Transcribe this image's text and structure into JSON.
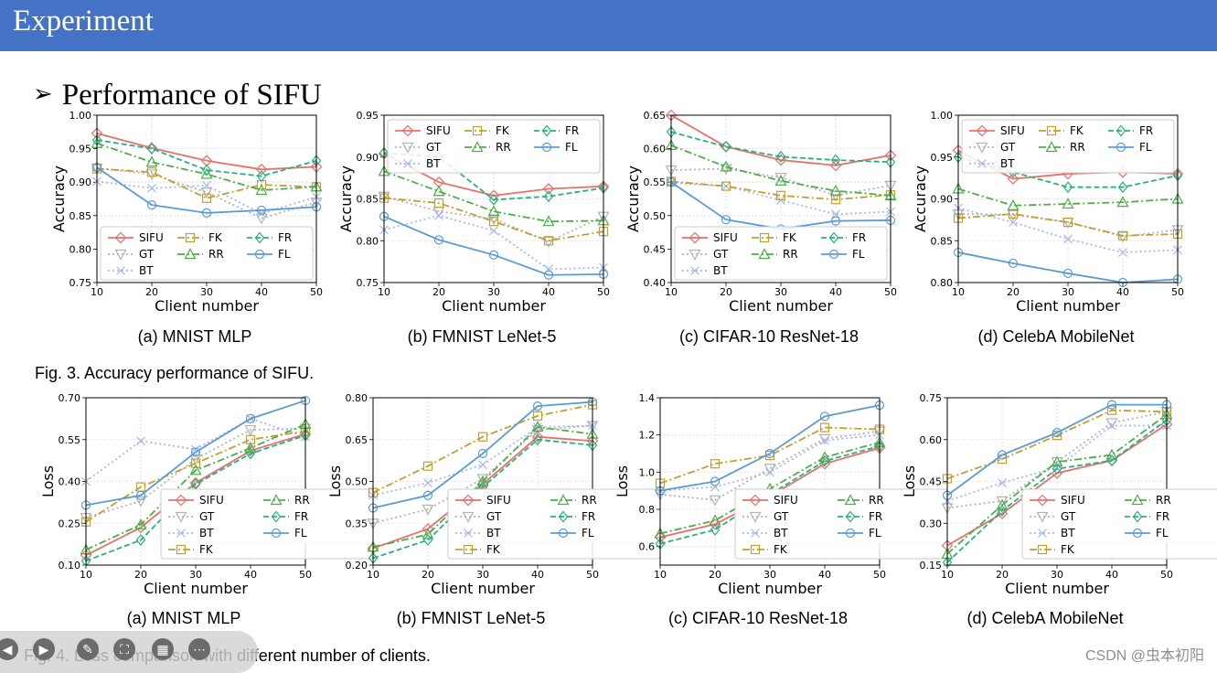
{
  "banner": {
    "title": "Experiment"
  },
  "section": {
    "bullet": "➢",
    "title": "Performance of SIFU"
  },
  "fig3_caption": "Fig. 3. Accuracy performance of SIFU.",
  "fig4_caption": "Fig. 4. Loss comparison with different number of clients.",
  "watermark": "CSDN @虫本初阳",
  "colors": {
    "banner": "#4472c4",
    "SIFU": "#e8706b",
    "GT": "#b3b3b3",
    "BT": "#a8b8e8",
    "FK": "#c0a030",
    "RR": "#4cae48",
    "FR": "#2ab07f",
    "FL": "#5b9bd5"
  },
  "series_styles": {
    "SIFU": {
      "marker": "diamond",
      "dash": ""
    },
    "GT": {
      "marker": "tri-down",
      "dash": "2,3"
    },
    "BT": {
      "marker": "x",
      "dash": "2,3"
    },
    "FK": {
      "marker": "square",
      "dash": "8,3,2,3"
    },
    "RR": {
      "marker": "tri-up",
      "dash": "8,3,2,3"
    },
    "FR": {
      "marker": "thin-diamond",
      "dash": "6,3"
    },
    "FL": {
      "marker": "circle",
      "dash": ""
    }
  },
  "chart_data": [
    {
      "type": "line",
      "id": "acc-mnist",
      "title": "(a) MNIST MLP",
      "xlabel": "Client number",
      "ylabel": "Accuracy",
      "x": [
        10,
        20,
        30,
        40,
        50
      ],
      "xticks": [
        10,
        20,
        30,
        40,
        50
      ],
      "ylim": [
        0.75,
        1.0
      ],
      "yticks": [
        "0.75",
        "0.80",
        "0.85",
        "0.90",
        "0.95",
        "1.00"
      ],
      "legend": "bottom-left",
      "series": [
        {
          "name": "SIFU",
          "values": [
            0.973,
            0.951,
            0.932,
            0.919,
            0.923
          ]
        },
        {
          "name": "GT",
          "values": [
            0.921,
            0.912,
            0.885,
            0.846,
            0.87
          ]
        },
        {
          "name": "BT",
          "values": [
            0.901,
            0.891,
            0.895,
            0.853,
            0.878
          ]
        },
        {
          "name": "FK",
          "values": [
            0.92,
            0.915,
            0.876,
            0.896,
            0.893
          ]
        },
        {
          "name": "RR",
          "values": [
            0.958,
            0.93,
            0.912,
            0.888,
            0.893
          ]
        },
        {
          "name": "FR",
          "values": [
            0.963,
            0.95,
            0.918,
            0.909,
            0.932
          ]
        },
        {
          "name": "FL",
          "values": [
            0.922,
            0.866,
            0.854,
            0.858,
            0.863
          ]
        }
      ]
    },
    {
      "type": "line",
      "id": "acc-fmnist",
      "title": "(b) FMNIST LeNet-5",
      "xlabel": "Client number",
      "ylabel": "Accuracy",
      "x": [
        10,
        20,
        30,
        40,
        50
      ],
      "xticks": [
        10,
        20,
        30,
        40,
        50
      ],
      "ylim": [
        0.75,
        0.95
      ],
      "yticks": [
        "0.75",
        "0.80",
        "0.85",
        "0.90",
        "0.95"
      ],
      "legend": "top-right",
      "series": [
        {
          "name": "SIFU",
          "values": [
            0.904,
            0.87,
            0.854,
            0.862,
            0.865
          ]
        },
        {
          "name": "GT",
          "values": [
            0.853,
            0.835,
            0.826,
            0.799,
            0.829
          ]
        },
        {
          "name": "BT",
          "values": [
            0.813,
            0.83,
            0.812,
            0.766,
            0.768
          ]
        },
        {
          "name": "FK",
          "values": [
            0.851,
            0.845,
            0.823,
            0.8,
            0.811
          ]
        },
        {
          "name": "RR",
          "values": [
            0.883,
            0.859,
            0.835,
            0.823,
            0.824
          ]
        },
        {
          "name": "FR",
          "values": [
            0.905,
            0.9,
            0.849,
            0.853,
            0.863
          ]
        },
        {
          "name": "FL",
          "values": [
            0.829,
            0.801,
            0.783,
            0.759,
            0.76
          ]
        }
      ]
    },
    {
      "type": "line",
      "id": "acc-cifar",
      "title": "(c) CIFAR-10 ResNet-18",
      "xlabel": "Client number",
      "ylabel": "Accuracy",
      "x": [
        10,
        20,
        30,
        40,
        50
      ],
      "xticks": [
        10,
        20,
        30,
        40,
        50
      ],
      "ylim": [
        0.4,
        0.65
      ],
      "yticks": [
        "0.40",
        "0.45",
        "0.50",
        "0.55",
        "0.60",
        "0.65"
      ],
      "legend": "bottom-center",
      "series": [
        {
          "name": "SIFU",
          "values": [
            0.65,
            0.603,
            0.583,
            0.575,
            0.59
          ]
        },
        {
          "name": "GT",
          "values": [
            0.568,
            0.57,
            0.557,
            0.53,
            0.545
          ]
        },
        {
          "name": "BT",
          "values": [
            0.549,
            0.544,
            0.523,
            0.502,
            0.506
          ]
        },
        {
          "name": "FK",
          "values": [
            0.551,
            0.544,
            0.53,
            0.524,
            0.531
          ]
        },
        {
          "name": "RR",
          "values": [
            0.605,
            0.573,
            0.552,
            0.537,
            0.53
          ]
        },
        {
          "name": "FR",
          "values": [
            0.625,
            0.603,
            0.588,
            0.583,
            0.58
          ]
        },
        {
          "name": "FL",
          "values": [
            0.55,
            0.494,
            0.48,
            0.492,
            0.493
          ]
        }
      ]
    },
    {
      "type": "line",
      "id": "acc-celeba",
      "title": "(d) CelebA MobileNet",
      "xlabel": "Client number",
      "ylabel": "Accuracy",
      "x": [
        10,
        20,
        30,
        40,
        50
      ],
      "xticks": [
        10,
        20,
        30,
        40,
        50
      ],
      "ylim": [
        0.8,
        1.0
      ],
      "yticks": [
        "0.80",
        "0.85",
        "0.90",
        "0.95",
        "1.00"
      ],
      "legend": "top-right",
      "series": [
        {
          "name": "SIFU",
          "values": [
            0.958,
            0.924,
            0.93,
            0.932,
            0.93
          ]
        },
        {
          "name": "GT",
          "values": [
            0.882,
            0.881,
            0.872,
            0.855,
            0.863
          ]
        },
        {
          "name": "BT",
          "values": [
            0.889,
            0.872,
            0.852,
            0.836,
            0.839
          ]
        },
        {
          "name": "FK",
          "values": [
            0.877,
            0.882,
            0.872,
            0.856,
            0.858
          ]
        },
        {
          "name": "RR",
          "values": [
            0.912,
            0.892,
            0.894,
            0.896,
            0.9
          ]
        },
        {
          "name": "FR",
          "values": [
            0.95,
            0.932,
            0.914,
            0.914,
            0.928
          ]
        },
        {
          "name": "FL",
          "values": [
            0.836,
            0.823,
            0.811,
            0.8,
            0.804
          ]
        }
      ]
    },
    {
      "type": "line",
      "id": "loss-mnist",
      "title": "(a) MNIST MLP",
      "xlabel": "Client number",
      "ylabel": "Loss",
      "x": [
        10,
        20,
        30,
        40,
        50
      ],
      "xticks": [
        10,
        20,
        30,
        40,
        50
      ],
      "ylim": [
        0.1,
        0.7
      ],
      "yticks": [
        "0.10",
        "0.25",
        "0.40",
        "0.55",
        "0.70"
      ],
      "legend": "bottom-right",
      "series": [
        {
          "name": "SIFU",
          "values": [
            0.135,
            0.235,
            0.395,
            0.51,
            0.57
          ]
        },
        {
          "name": "GT",
          "values": [
            0.27,
            0.33,
            0.48,
            0.585,
            0.59
          ]
        },
        {
          "name": "BT",
          "values": [
            0.4,
            0.545,
            0.515,
            0.625,
            0.56
          ]
        },
        {
          "name": "FK",
          "values": [
            0.255,
            0.38,
            0.465,
            0.55,
            0.58
          ]
        },
        {
          "name": "RR",
          "values": [
            0.155,
            0.245,
            0.44,
            0.52,
            0.605
          ]
        },
        {
          "name": "FR",
          "values": [
            0.115,
            0.19,
            0.39,
            0.5,
            0.565
          ]
        },
        {
          "name": "FL",
          "values": [
            0.315,
            0.35,
            0.505,
            0.625,
            0.69
          ]
        }
      ]
    },
    {
      "type": "line",
      "id": "loss-fmnist",
      "title": "(b) FMNIST LeNet-5",
      "xlabel": "Client number",
      "ylabel": "Loss",
      "x": [
        10,
        20,
        30,
        40,
        50
      ],
      "xticks": [
        10,
        20,
        30,
        40,
        50
      ],
      "ylim": [
        0.2,
        0.8
      ],
      "yticks": [
        "0.20",
        "0.35",
        "0.50",
        "0.65",
        "0.80"
      ],
      "legend": "bottom-right",
      "series": [
        {
          "name": "SIFU",
          "values": [
            0.26,
            0.33,
            0.49,
            0.66,
            0.645
          ]
        },
        {
          "name": "GT",
          "values": [
            0.35,
            0.4,
            0.51,
            0.685,
            0.7
          ]
        },
        {
          "name": "BT",
          "values": [
            0.45,
            0.495,
            0.56,
            0.695,
            0.7
          ]
        },
        {
          "name": "FK",
          "values": [
            0.46,
            0.555,
            0.66,
            0.735,
            0.775
          ]
        },
        {
          "name": "RR",
          "values": [
            0.265,
            0.31,
            0.5,
            0.695,
            0.67
          ]
        },
        {
          "name": "FR",
          "values": [
            0.225,
            0.29,
            0.48,
            0.65,
            0.63
          ]
        },
        {
          "name": "FL",
          "values": [
            0.405,
            0.45,
            0.6,
            0.77,
            0.785
          ]
        }
      ]
    },
    {
      "type": "line",
      "id": "loss-cifar",
      "title": "(c) CIFAR-10 ResNet-18",
      "xlabel": "Client number",
      "ylabel": "Loss",
      "x": [
        10,
        20,
        30,
        40,
        50
      ],
      "xticks": [
        10,
        20,
        30,
        40,
        50
      ],
      "ylim": [
        0.5,
        1.4
      ],
      "yticks": [
        "0.6",
        "0.8",
        "1.0",
        "1.2",
        "1.4"
      ],
      "legend": "bottom-right",
      "series": [
        {
          "name": "SIFU",
          "values": [
            0.65,
            0.72,
            0.87,
            1.045,
            1.13
          ]
        },
        {
          "name": "GT",
          "values": [
            0.88,
            0.85,
            1.02,
            1.18,
            1.22
          ]
        },
        {
          "name": "BT",
          "values": [
            0.9,
            0.92,
            1.0,
            1.17,
            1.2
          ]
        },
        {
          "name": "FK",
          "values": [
            0.94,
            1.045,
            1.09,
            1.24,
            1.23
          ]
        },
        {
          "name": "RR",
          "values": [
            0.67,
            0.74,
            0.91,
            1.08,
            1.16
          ]
        },
        {
          "name": "FR",
          "values": [
            0.615,
            0.69,
            0.88,
            1.06,
            1.14
          ]
        },
        {
          "name": "FL",
          "values": [
            0.9,
            0.95,
            1.1,
            1.3,
            1.36
          ]
        }
      ]
    },
    {
      "type": "line",
      "id": "loss-celeba",
      "title": "(d) CelebA MobileNet",
      "xlabel": "Client number",
      "ylabel": "Loss",
      "x": [
        10,
        20,
        30,
        40,
        50
      ],
      "xticks": [
        10,
        20,
        30,
        40,
        50
      ],
      "ylim": [
        0.15,
        0.75
      ],
      "yticks": [
        "0.15",
        "0.30",
        "0.45",
        "0.60",
        "0.75"
      ],
      "legend": "bottom-right",
      "series": [
        {
          "name": "SIFU",
          "values": [
            0.22,
            0.335,
            0.48,
            0.525,
            0.655
          ]
        },
        {
          "name": "GT",
          "values": [
            0.355,
            0.38,
            0.52,
            0.66,
            0.7
          ]
        },
        {
          "name": "BT",
          "values": [
            0.38,
            0.445,
            0.5,
            0.65,
            0.65
          ]
        },
        {
          "name": "FK",
          "values": [
            0.46,
            0.53,
            0.615,
            0.705,
            0.7
          ]
        },
        {
          "name": "RR",
          "values": [
            0.19,
            0.365,
            0.52,
            0.545,
            0.69
          ]
        },
        {
          "name": "FR",
          "values": [
            0.16,
            0.345,
            0.495,
            0.525,
            0.67
          ]
        },
        {
          "name": "FL",
          "values": [
            0.4,
            0.545,
            0.625,
            0.725,
            0.725
          ]
        }
      ]
    }
  ]
}
